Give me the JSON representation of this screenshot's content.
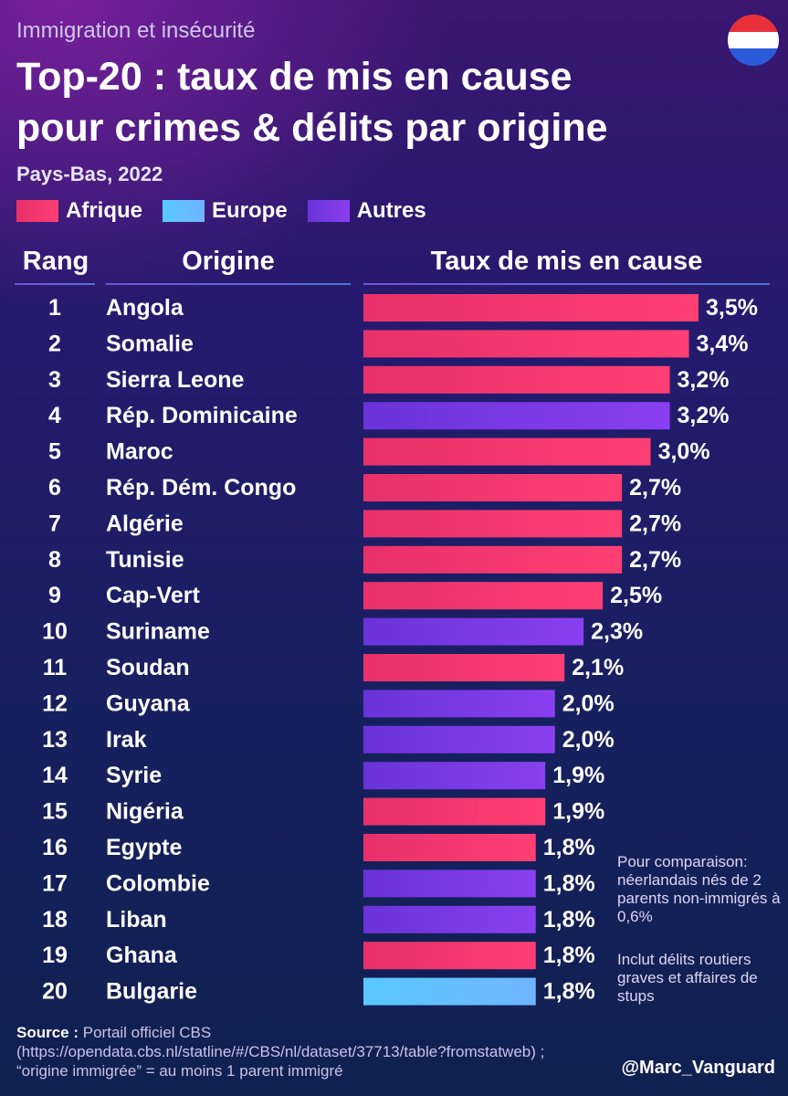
{
  "header": {
    "kicker": "Immigration et insécurité",
    "title_line1": "Top-20 : taux de mis en cause",
    "title_line2": "pour crimes & délits par origine",
    "subtitle": "Pays-Bas, 2022"
  },
  "legend": [
    {
      "label": "Afrique",
      "color": "#ff3f74",
      "color_light": "#e8306a"
    },
    {
      "label": "Europe",
      "color": "#6fb4ff",
      "color_light": "#59c9ff"
    },
    {
      "label": "Autres",
      "color": "#8a3ff0",
      "color_light": "#6a33d8"
    }
  ],
  "flag": {
    "icon": "netherlands-flag-icon",
    "colors": [
      "#e8303b",
      "#ffffff",
      "#2b5bd9"
    ]
  },
  "columns": {
    "rank": "Rang",
    "origin": "Origine",
    "rate": "Taux de mis en cause"
  },
  "chart_data": {
    "type": "bar",
    "orientation": "horizontal",
    "unit": "%",
    "xlim": [
      0,
      3.5
    ],
    "grid": false,
    "legend_position": "top-left",
    "rows": [
      {
        "rank": "1",
        "origin": "Angola",
        "value": 3.5,
        "label": "3,5%",
        "group": "Afrique"
      },
      {
        "rank": "2",
        "origin": "Somalie",
        "value": 3.4,
        "label": "3,4%",
        "group": "Afrique"
      },
      {
        "rank": "3",
        "origin": "Sierra Leone",
        "value": 3.2,
        "label": "3,2%",
        "group": "Afrique"
      },
      {
        "rank": "4",
        "origin": "Rép. Dominicaine",
        "value": 3.2,
        "label": "3,2%",
        "group": "Autres"
      },
      {
        "rank": "5",
        "origin": "Maroc",
        "value": 3.0,
        "label": "3,0%",
        "group": "Afrique"
      },
      {
        "rank": "6",
        "origin": "Rép. Dém. Congo",
        "value": 2.7,
        "label": "2,7%",
        "group": "Afrique"
      },
      {
        "rank": "7",
        "origin": "Algérie",
        "value": 2.7,
        "label": "2,7%",
        "group": "Afrique"
      },
      {
        "rank": "8",
        "origin": "Tunisie",
        "value": 2.7,
        "label": "2,7%",
        "group": "Afrique"
      },
      {
        "rank": "9",
        "origin": "Cap-Vert",
        "value": 2.5,
        "label": "2,5%",
        "group": "Afrique"
      },
      {
        "rank": "10",
        "origin": "Suriname",
        "value": 2.3,
        "label": "2,3%",
        "group": "Autres"
      },
      {
        "rank": "11",
        "origin": "Soudan",
        "value": 2.1,
        "label": "2,1%",
        "group": "Afrique"
      },
      {
        "rank": "12",
        "origin": "Guyana",
        "value": 2.0,
        "label": "2,0%",
        "group": "Autres"
      },
      {
        "rank": "13",
        "origin": "Irak",
        "value": 2.0,
        "label": "2,0%",
        "group": "Autres"
      },
      {
        "rank": "14",
        "origin": "Syrie",
        "value": 1.9,
        "label": "1,9%",
        "group": "Autres"
      },
      {
        "rank": "15",
        "origin": "Nigéria",
        "value": 1.9,
        "label": "1,9%",
        "group": "Afrique"
      },
      {
        "rank": "16",
        "origin": "Egypte",
        "value": 1.8,
        "label": "1,8%",
        "group": "Afrique"
      },
      {
        "rank": "17",
        "origin": "Colombie",
        "value": 1.8,
        "label": "1,8%",
        "group": "Autres"
      },
      {
        "rank": "18",
        "origin": "Liban",
        "value": 1.8,
        "label": "1,8%",
        "group": "Autres"
      },
      {
        "rank": "19",
        "origin": "Ghana",
        "value": 1.8,
        "label": "1,8%",
        "group": "Afrique"
      },
      {
        "rank": "20",
        "origin": "Bulgarie",
        "value": 1.8,
        "label": "1,8%",
        "group": "Europe"
      }
    ]
  },
  "notes": {
    "comparison": "Pour comparaison: néerlandais nés de 2 parents non-immigrés à 0,6%",
    "scope": "Inclut délits routiers graves et affaires de stups"
  },
  "footer": {
    "source_label": "Source :",
    "source_text": "Portail officiel CBS (https://opendata.cbs.nl/statline/#/CBS/nl/dataset/37713/table?fromstatweb) ; “origine immigrée” = au moins 1 parent immigré",
    "handle": "@Marc_Vanguard"
  }
}
